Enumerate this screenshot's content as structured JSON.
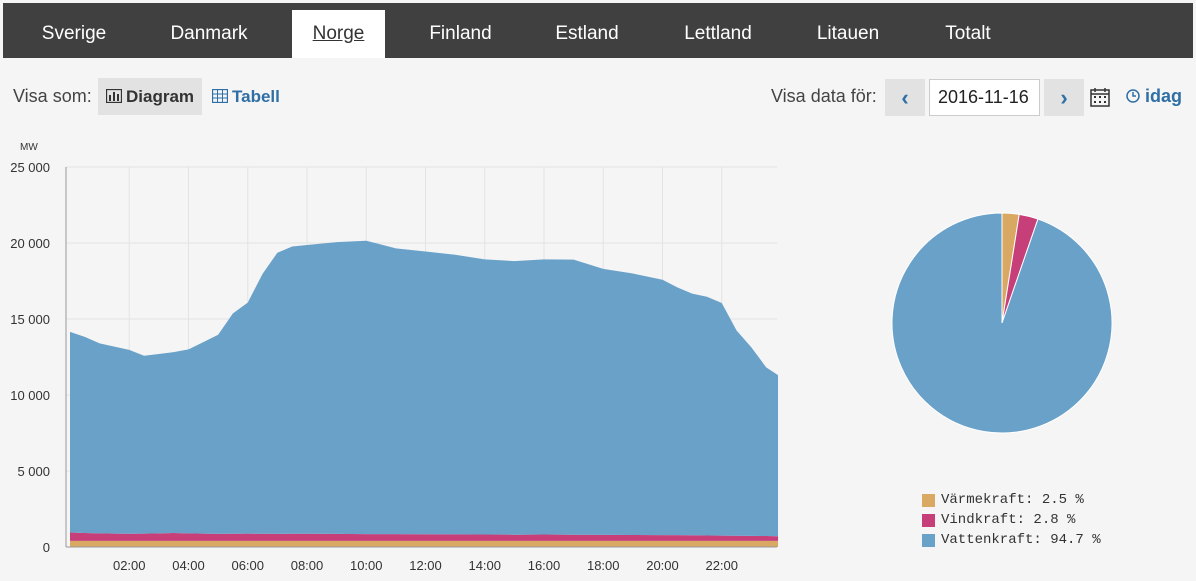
{
  "tabs": [
    "Sverige",
    "Danmark",
    "Norge",
    "Finland",
    "Estland",
    "Lettland",
    "Litauen",
    "Totalt"
  ],
  "active_tab": "Norge",
  "toolbar": {
    "visa_som": "Visa som:",
    "diagram": "Diagram",
    "tabell": "Tabell",
    "visa_data_for": "Visa data för:",
    "date": "2016-11-16",
    "idag": "idag"
  },
  "colors": {
    "varmekraft": "#d9a862",
    "vindkraft": "#c63f79",
    "vattenkraft": "#69a1c9"
  },
  "chart_data": [
    {
      "type": "area",
      "unit_label": "MW",
      "ylim": [
        0,
        25000
      ],
      "yticks": [
        "0",
        "5 000",
        "10 000",
        "15 000",
        "20 000",
        "25 000"
      ],
      "xticks": [
        "02:00",
        "04:00",
        "06:00",
        "08:00",
        "10:00",
        "12:00",
        "14:00",
        "16:00",
        "18:00",
        "20:00",
        "22:00"
      ],
      "x_hours": [
        0,
        0.5,
        1,
        1.5,
        2,
        2.5,
        3,
        3.5,
        4,
        4.5,
        5,
        5.5,
        6,
        6.5,
        7,
        7.5,
        8,
        9,
        10,
        11,
        12,
        13,
        14,
        15,
        16,
        17,
        18,
        19,
        20,
        20.5,
        21,
        21.5,
        22,
        22.5,
        23,
        23.5,
        23.9
      ],
      "series": [
        {
          "key": "varmekraft",
          "values": [
            400,
            400,
            400,
            400,
            400,
            400,
            400,
            400,
            400,
            400,
            400,
            400,
            400,
            400,
            400,
            400,
            400,
            400,
            400,
            400,
            400,
            400,
            400,
            400,
            400,
            400,
            400,
            400,
            400,
            400,
            400,
            400,
            400,
            400,
            400,
            400,
            400
          ]
        },
        {
          "key": "vindkraft",
          "values": [
            550,
            520,
            500,
            480,
            470,
            480,
            500,
            520,
            500,
            480,
            460,
            470,
            480,
            470,
            460,
            470,
            470,
            460,
            450,
            450,
            440,
            430,
            420,
            410,
            420,
            410,
            400,
            390,
            380,
            380,
            370,
            360,
            350,
            340,
            330,
            320,
            310
          ]
        },
        {
          "key": "vattenkraft",
          "values": [
            13200,
            12900,
            12500,
            12300,
            12100,
            11700,
            11800,
            11900,
            12100,
            12600,
            13100,
            14500,
            15200,
            17100,
            18500,
            18900,
            19000,
            19200,
            19300,
            18800,
            18600,
            18400,
            18100,
            18000,
            18100,
            18100,
            17500,
            17200,
            16800,
            16300,
            15900,
            15700,
            15300,
            13500,
            12400,
            11100,
            10600
          ]
        }
      ]
    },
    {
      "type": "pie",
      "slices": [
        {
          "key": "varmekraft",
          "label": "Värmekraft: 2.5 %",
          "value": 2.5
        },
        {
          "key": "vindkraft",
          "label": "Vindkraft: 2.8 %",
          "value": 2.8
        },
        {
          "key": "vattenkraft",
          "label": "Vattenkraft: 94.7 %",
          "value": 94.7
        }
      ]
    }
  ]
}
